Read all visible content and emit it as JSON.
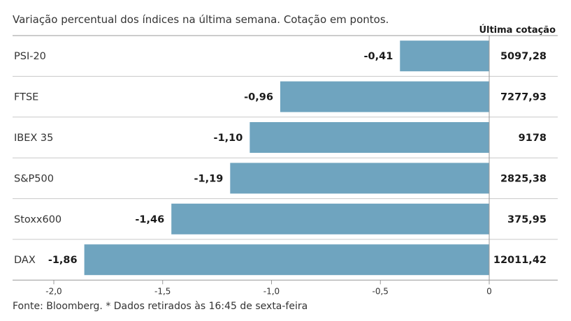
{
  "chart_data": {
    "type": "bar",
    "orientation": "horizontal",
    "subtitle": "Variação percentual dos índices na última semana. Cotação em pontos.",
    "column_header": "Última cotação",
    "categories": [
      "PSI-20",
      "FTSE",
      "IBEX 35",
      "S&P500",
      "Stoxx600",
      "DAX"
    ],
    "values": [
      -0.41,
      -0.96,
      -1.1,
      -1.19,
      -1.46,
      -1.86
    ],
    "value_labels": [
      "-0,41",
      "-0,96",
      "-1,10",
      "-1,19",
      "-1,46",
      "-1,86"
    ],
    "quotes": [
      "5097,28",
      "7277,93",
      "9178",
      "2825,38",
      "375,95",
      "12011,42"
    ],
    "xlim": [
      -2.0,
      0
    ],
    "xticks": [
      -2.0,
      -1.5,
      -1.0,
      -0.5,
      0
    ],
    "xtick_labels": [
      "-2,0",
      "-1,5",
      "-1,0",
      "-0,5",
      "0"
    ],
    "source": "Fonte: Bloomberg.  * Dados retirados às 16:45 de sexta-feira",
    "colors": {
      "bar": "#6fa4bf",
      "grid": "#c8c8c8",
      "axis": "#999999"
    }
  }
}
